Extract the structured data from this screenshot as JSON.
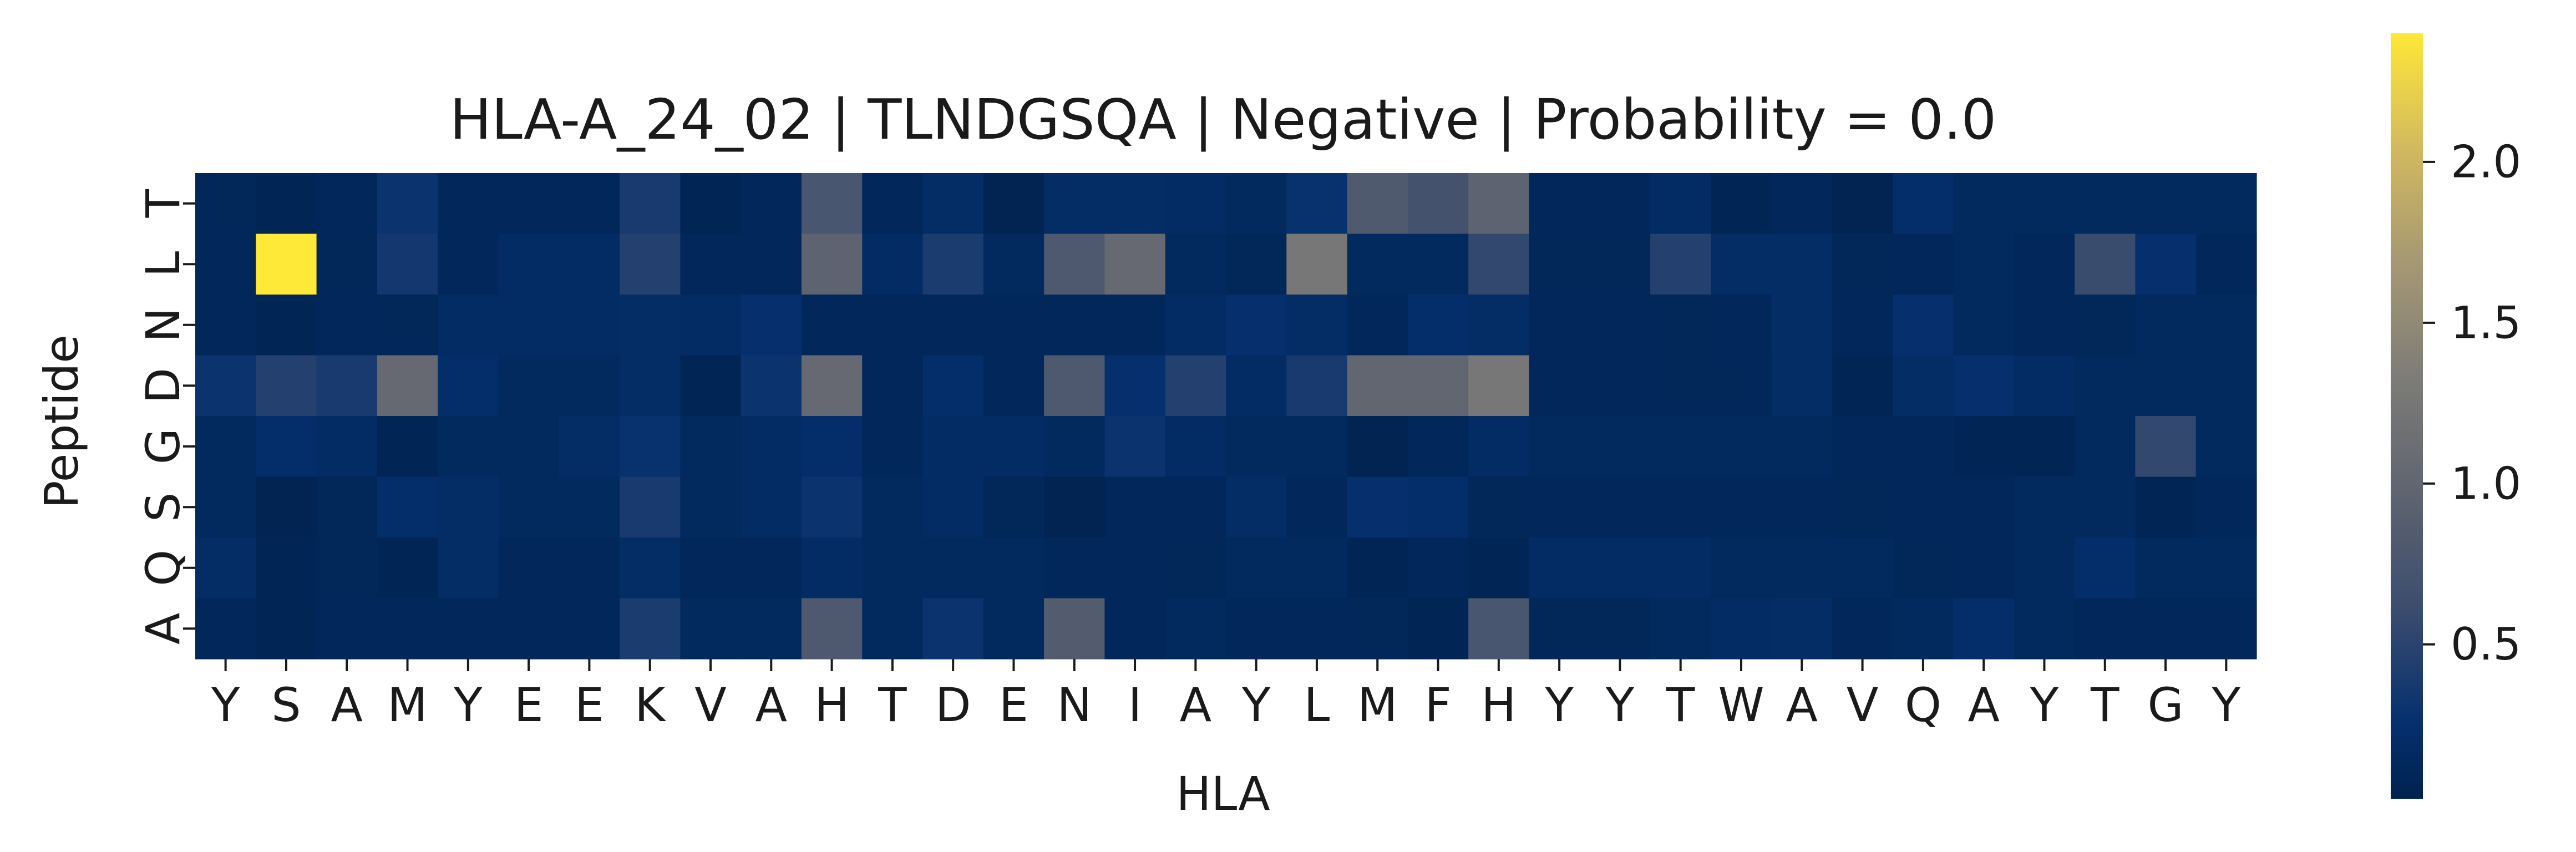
{
  "chart_data": {
    "type": "heatmap",
    "title": "HLA-A_24_02 | TLNDGSQA | Negative | Probability = 0.0",
    "xlabel": "HLA",
    "ylabel": "Peptide",
    "x_categories": [
      "Y",
      "S",
      "A",
      "M",
      "Y",
      "E",
      "E",
      "K",
      "V",
      "A",
      "H",
      "T",
      "D",
      "E",
      "N",
      "I",
      "A",
      "Y",
      "L",
      "M",
      "F",
      "H",
      "Y",
      "Y",
      "T",
      "W",
      "A",
      "V",
      "Q",
      "A",
      "Y",
      "T",
      "G",
      "Y"
    ],
    "y_categories": [
      "T",
      "L",
      "N",
      "D",
      "G",
      "S",
      "Q",
      "A"
    ],
    "colormap": "cividis",
    "color_range": [
      0.02,
      2.4
    ],
    "colorbar_ticks": [
      {
        "value": 0.5,
        "label": "0.5"
      },
      {
        "value": 1.0,
        "label": "1.0"
      },
      {
        "value": 1.5,
        "label": "1.5"
      },
      {
        "value": 2.0,
        "label": "2.0"
      }
    ],
    "values": [
      [
        0.1,
        0.07,
        0.12,
        0.3,
        0.12,
        0.12,
        0.12,
        0.38,
        0.07,
        0.12,
        0.75,
        0.12,
        0.2,
        0.05,
        0.2,
        0.2,
        0.18,
        0.15,
        0.28,
        0.82,
        0.7,
        0.95,
        0.12,
        0.12,
        0.18,
        0.08,
        0.12,
        0.06,
        0.22,
        0.15,
        0.15,
        0.15,
        0.15,
        0.15
      ],
      [
        0.12,
        2.4,
        0.1,
        0.35,
        0.12,
        0.18,
        0.18,
        0.45,
        0.12,
        0.12,
        0.95,
        0.18,
        0.4,
        0.15,
        0.8,
        1.05,
        0.15,
        0.1,
        1.25,
        0.15,
        0.15,
        0.55,
        0.1,
        0.1,
        0.45,
        0.2,
        0.2,
        0.1,
        0.12,
        0.15,
        0.12,
        0.6,
        0.25,
        0.12
      ],
      [
        0.12,
        0.08,
        0.12,
        0.1,
        0.18,
        0.18,
        0.18,
        0.2,
        0.18,
        0.25,
        0.12,
        0.12,
        0.12,
        0.12,
        0.12,
        0.12,
        0.18,
        0.25,
        0.2,
        0.12,
        0.22,
        0.2,
        0.12,
        0.12,
        0.1,
        0.12,
        0.2,
        0.12,
        0.25,
        0.15,
        0.12,
        0.1,
        0.15,
        0.15
      ],
      [
        0.3,
        0.45,
        0.38,
        1.05,
        0.22,
        0.15,
        0.15,
        0.2,
        0.08,
        0.3,
        1.05,
        0.12,
        0.22,
        0.12,
        0.8,
        0.25,
        0.45,
        0.18,
        0.38,
        1.0,
        1.0,
        1.25,
        0.12,
        0.12,
        0.1,
        0.1,
        0.2,
        0.08,
        0.2,
        0.25,
        0.18,
        0.15,
        0.15,
        0.15
      ],
      [
        0.15,
        0.22,
        0.18,
        0.08,
        0.15,
        0.15,
        0.2,
        0.28,
        0.15,
        0.18,
        0.22,
        0.12,
        0.18,
        0.18,
        0.15,
        0.3,
        0.18,
        0.15,
        0.15,
        0.06,
        0.12,
        0.18,
        0.15,
        0.15,
        0.15,
        0.15,
        0.15,
        0.12,
        0.12,
        0.08,
        0.08,
        0.15,
        0.55,
        0.15
      ],
      [
        0.15,
        0.06,
        0.1,
        0.22,
        0.2,
        0.15,
        0.15,
        0.38,
        0.15,
        0.18,
        0.3,
        0.15,
        0.18,
        0.1,
        0.06,
        0.12,
        0.12,
        0.2,
        0.12,
        0.25,
        0.22,
        0.1,
        0.12,
        0.12,
        0.12,
        0.12,
        0.12,
        0.1,
        0.12,
        0.12,
        0.15,
        0.15,
        0.08,
        0.12
      ],
      [
        0.2,
        0.08,
        0.1,
        0.08,
        0.2,
        0.12,
        0.12,
        0.2,
        0.12,
        0.12,
        0.18,
        0.15,
        0.15,
        0.15,
        0.12,
        0.12,
        0.1,
        0.15,
        0.15,
        0.08,
        0.12,
        0.08,
        0.18,
        0.18,
        0.18,
        0.15,
        0.15,
        0.15,
        0.1,
        0.12,
        0.15,
        0.22,
        0.15,
        0.15
      ],
      [
        0.12,
        0.08,
        0.12,
        0.12,
        0.12,
        0.12,
        0.12,
        0.4,
        0.15,
        0.15,
        0.8,
        0.15,
        0.3,
        0.15,
        0.85,
        0.12,
        0.15,
        0.12,
        0.12,
        0.1,
        0.08,
        0.75,
        0.1,
        0.1,
        0.15,
        0.18,
        0.2,
        0.12,
        0.15,
        0.22,
        0.15,
        0.12,
        0.12,
        0.12
      ]
    ]
  }
}
